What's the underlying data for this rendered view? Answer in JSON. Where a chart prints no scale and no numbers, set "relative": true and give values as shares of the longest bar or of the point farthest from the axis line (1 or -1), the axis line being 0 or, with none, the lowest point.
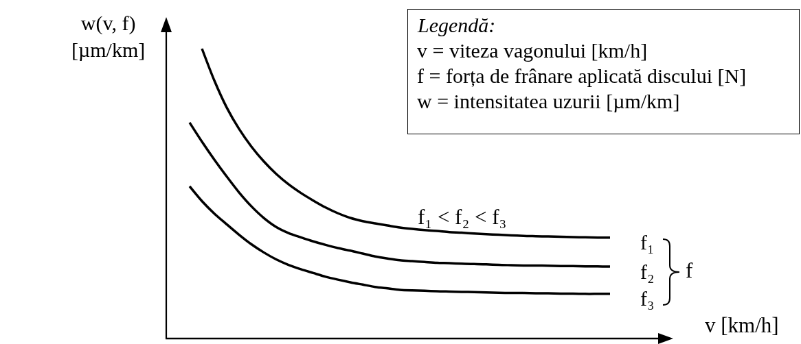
{
  "chart_data": {
    "type": "line",
    "relative": true,
    "legend": false,
    "xlabel": "v [km/h]",
    "ylabel": "w(v, f)\n[µm/km]",
    "annotations": [
      "Legendă:",
      "v = viteza vagonului [km/h]",
      "f = forța de frânare aplicată discului [N]",
      "w = intensitatea uzurii [µm/km]",
      "f₁ < f₂ < f₃",
      "f"
    ],
    "categories": [
      null,
      null,
      null,
      null,
      null,
      null,
      null,
      null,
      null,
      null,
      null,
      null,
      null,
      null,
      null,
      null,
      null,
      null,
      null,
      null,
      null,
      null,
      null,
      null,
      null,
      null,
      null,
      null,
      null,
      null,
      null,
      null,
      null,
      null,
      null
    ],
    "series": [
      {
        "name": "f₁",
        "color": "#000000",
        "values": [
          null,
          1.0,
          0.89,
          0.797,
          0.723,
          0.662,
          0.611,
          0.568,
          0.532,
          0.502,
          0.476,
          0.452,
          0.432,
          0.416,
          0.405,
          0.397,
          0.39,
          0.383,
          0.378,
          0.374,
          0.371,
          0.367,
          0.365,
          0.362,
          0.36,
          0.358,
          0.356,
          0.354,
          0.353,
          0.352,
          0.351,
          0.35,
          0.349,
          0.348,
          0.348
        ]
      },
      {
        "name": "f₂",
        "color": "#000000",
        "values": [
          0.745,
          0.679,
          0.617,
          0.559,
          0.504,
          0.456,
          0.416,
          0.385,
          0.364,
          0.349,
          0.335,
          0.323,
          0.312,
          0.303,
          0.293,
          0.283,
          0.276,
          0.27,
          0.267,
          0.264,
          0.261,
          0.26,
          0.258,
          0.257,
          0.256,
          0.254,
          0.253,
          0.252,
          0.252,
          0.251,
          0.25,
          0.25,
          0.249,
          0.249,
          0.248
        ]
      },
      {
        "name": "f₃",
        "color": "#000000",
        "values": [
          0.525,
          0.474,
          0.431,
          0.394,
          0.358,
          0.325,
          0.297,
          0.273,
          0.254,
          0.239,
          0.226,
          0.213,
          0.203,
          0.194,
          0.186,
          0.178,
          0.173,
          0.168,
          0.166,
          0.165,
          0.163,
          0.162,
          0.161,
          0.16,
          0.159,
          0.158,
          0.157,
          0.157,
          0.156,
          0.156,
          0.155,
          0.155,
          0.154,
          0.154,
          0.154
        ]
      }
    ]
  }
}
